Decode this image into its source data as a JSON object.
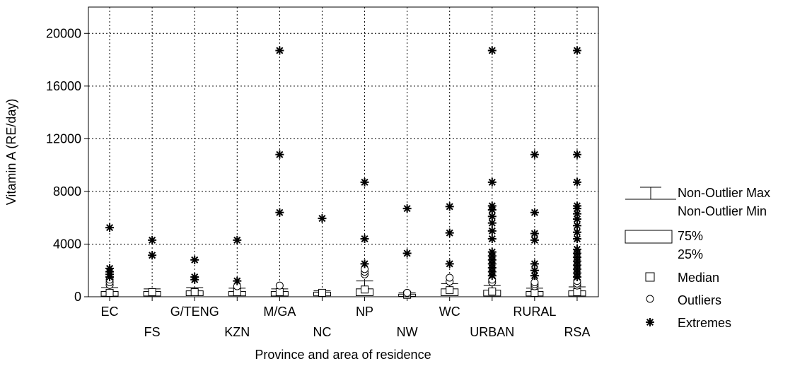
{
  "chart_data": {
    "type": "box",
    "xlabel": "Province and area of residence",
    "ylabel": "Vitamin A (RE/day)",
    "ylim": [
      0,
      22000
    ],
    "yticks": [
      0,
      4000,
      8000,
      12000,
      16000,
      20000
    ],
    "grid": true,
    "legend_position": "right",
    "categories": [
      "EC",
      "FS",
      "G/TENG",
      "KZN",
      "M/GA",
      "NC",
      "NP",
      "NW",
      "WC",
      "URBAN",
      "RURAL",
      "RSA"
    ],
    "series": [
      {
        "category": "EC",
        "median": 300,
        "q1": 50,
        "q3": 400,
        "whisker_low": 0,
        "whisker_high": 700,
        "outliers": [
          900,
          1100,
          1300
        ],
        "extremes": [
          1500,
          1700,
          1900,
          2150,
          5250
        ]
      },
      {
        "category": "FS",
        "median": 350,
        "q1": 60,
        "q3": 400,
        "whisker_low": 0,
        "whisker_high": 600,
        "outliers": [],
        "extremes": [
          3150,
          4300
        ]
      },
      {
        "category": "G/TENG",
        "median": 350,
        "q1": 80,
        "q3": 450,
        "whisker_low": 0,
        "whisker_high": 700,
        "outliers": [],
        "extremes": [
          1300,
          1500,
          2800
        ]
      },
      {
        "category": "KZN",
        "median": 350,
        "q1": 70,
        "q3": 400,
        "whisker_low": 0,
        "whisker_high": 650,
        "outliers": [
          800
        ],
        "extremes": [
          1200,
          4300
        ]
      },
      {
        "category": "M/GA",
        "median": 350,
        "q1": 60,
        "q3": 400,
        "whisker_low": 0,
        "whisker_high": 600,
        "outliers": [
          850
        ],
        "extremes": [
          6400,
          10800,
          18700
        ]
      },
      {
        "category": "NC",
        "median": 300,
        "q1": 70,
        "q3": 350,
        "whisker_low": 0,
        "whisker_high": 450,
        "outliers": [],
        "extremes": [
          5950
        ]
      },
      {
        "category": "NP",
        "median": 550,
        "q1": 80,
        "q3": 600,
        "whisker_low": 0,
        "whisker_high": 1200,
        "outliers": [
          1700,
          1900,
          2100
        ],
        "extremes": [
          2500,
          4400,
          8700
        ]
      },
      {
        "category": "NW",
        "median": 150,
        "q1": 30,
        "q3": 200,
        "whisker_low": 0,
        "whisker_high": 300,
        "outliers": [
          300
        ],
        "extremes": [
          3300,
          6700
        ]
      },
      {
        "category": "WC",
        "median": 500,
        "q1": 80,
        "q3": 600,
        "whisker_low": 0,
        "whisker_high": 1000,
        "outliers": [
          1150,
          1450
        ],
        "extremes": [
          2500,
          4850,
          6850
        ]
      },
      {
        "category": "URBAN",
        "median": 400,
        "q1": 60,
        "q3": 500,
        "whisker_low": 0,
        "whisker_high": 850,
        "outliers": [
          1100,
          1300
        ],
        "extremes": [
          1600,
          1900,
          2200,
          2500,
          2800,
          3100,
          3400,
          4400,
          5000,
          5600,
          6100,
          6600,
          6900,
          8700,
          18700
        ]
      },
      {
        "category": "RURAL",
        "median": 300,
        "q1": 60,
        "q3": 400,
        "whisker_low": 0,
        "whisker_high": 650,
        "outliers": [
          800,
          950,
          1100
        ],
        "extremes": [
          1600,
          2000,
          2500,
          4300,
          4800,
          6400,
          10800
        ]
      },
      {
        "category": "RSA",
        "median": 350,
        "q1": 60,
        "q3": 450,
        "whisker_low": 0,
        "whisker_high": 750,
        "outliers": [
          850,
          1000,
          1200
        ],
        "extremes": [
          1500,
          1800,
          2100,
          2400,
          2700,
          3000,
          3300,
          3600,
          4400,
          4900,
          5400,
          5900,
          6300,
          6700,
          6900,
          8700,
          10800,
          18700
        ]
      }
    ],
    "legend": {
      "whisker_max": "Non-Outlier Max",
      "whisker_min": "Non-Outlier Min",
      "box_top": "75%",
      "box_bottom": "25%",
      "median": "Median",
      "outliers": "Outliers",
      "extremes": "Extremes"
    }
  }
}
